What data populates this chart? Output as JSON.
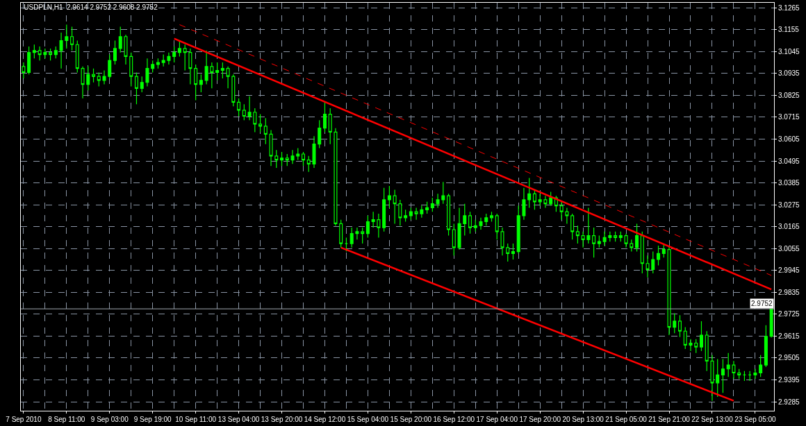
{
  "chart_data": {
    "type": "candlestick",
    "title": "USDPLN,H1  2.9614 2.9752 2.9608 2.9752",
    "categories": [
      "7 Sep 2010",
      null,
      null,
      null,
      null,
      null,
      null,
      null,
      "8 Sep 11:00",
      null,
      null,
      null,
      null,
      null,
      null,
      null,
      "9 Sep 03:00",
      null,
      null,
      null,
      null,
      null,
      null,
      null,
      "9 Sep 19:00",
      null,
      null,
      null,
      null,
      null,
      null,
      null,
      "10 Sep 11:00",
      null,
      null,
      null,
      null,
      null,
      null,
      null,
      "13 Sep 04:00",
      null,
      null,
      null,
      null,
      null,
      null,
      null,
      "13 Sep 20:00",
      null,
      null,
      null,
      null,
      null,
      null,
      null,
      "14 Sep 12:00",
      null,
      null,
      null,
      null,
      null,
      null,
      null,
      "15 Sep 04:00",
      null,
      null,
      null,
      null,
      null,
      null,
      null,
      "15 Sep 20:00",
      null,
      null,
      null,
      null,
      null,
      null,
      null,
      "16 Sep 12:00",
      null,
      null,
      null,
      null,
      null,
      null,
      null,
      "17 Sep 04:00",
      null,
      null,
      null,
      null,
      null,
      null,
      null,
      "17 Sep 20:00",
      null,
      null,
      null,
      null,
      null,
      null,
      null,
      "20 Sep 13:00",
      null,
      null,
      null,
      null,
      null,
      null,
      null,
      "21 Sep 05:00",
      null,
      null,
      null,
      null,
      null,
      null,
      null,
      "21 Sep 21:00",
      null,
      null,
      null,
      null,
      null,
      null,
      null,
      "22 Sep 13:00",
      null,
      null,
      null,
      null,
      null,
      null,
      null,
      "23 Sep 05:00",
      null,
      null,
      null
    ],
    "series": [
      {
        "color": "#00ff00",
        "ohlc": [
          [
            3.097,
            3.099,
            3.091,
            3.094
          ],
          [
            3.094,
            3.107,
            3.093,
            3.104
          ],
          [
            3.104,
            3.108,
            3.101,
            3.105
          ],
          [
            3.105,
            3.107,
            3.1,
            3.103
          ],
          [
            3.103,
            3.106,
            3.101,
            3.104
          ],
          [
            3.104,
            3.106,
            3.1,
            3.103
          ],
          [
            3.103,
            3.107,
            3.101,
            3.105
          ],
          [
            3.105,
            3.114,
            3.096,
            3.11
          ],
          [
            3.11,
            3.118,
            3.106,
            3.112
          ],
          [
            3.112,
            3.117,
            3.105,
            3.108
          ],
          [
            3.108,
            3.11,
            3.094,
            3.096
          ],
          [
            3.096,
            3.097,
            3.081,
            3.088
          ],
          [
            3.088,
            3.097,
            3.085,
            3.093
          ],
          [
            3.093,
            3.096,
            3.089,
            3.092
          ],
          [
            3.092,
            3.094,
            3.087,
            3.09
          ],
          [
            3.09,
            3.095,
            3.088,
            3.092
          ],
          [
            3.092,
            3.103,
            3.091,
            3.1
          ],
          [
            3.1,
            3.11,
            3.098,
            3.106
          ],
          [
            3.106,
            3.117,
            3.104,
            3.112
          ],
          [
            3.112,
            3.113,
            3.098,
            3.102
          ],
          [
            3.102,
            3.104,
            3.087,
            3.092
          ],
          [
            3.092,
            3.094,
            3.078,
            3.086
          ],
          [
            3.086,
            3.092,
            3.084,
            3.089
          ],
          [
            3.089,
            3.101,
            3.087,
            3.096
          ],
          [
            3.096,
            3.1,
            3.094,
            3.098
          ],
          [
            3.098,
            3.101,
            3.096,
            3.099
          ],
          [
            3.099,
            3.103,
            3.097,
            3.1
          ],
          [
            3.1,
            3.104,
            3.098,
            3.102
          ],
          [
            3.102,
            3.107,
            3.099,
            3.104
          ],
          [
            3.104,
            3.11,
            3.102,
            3.106
          ],
          [
            3.106,
            3.108,
            3.095,
            3.104
          ],
          [
            3.104,
            3.106,
            3.088,
            3.096
          ],
          [
            3.096,
            3.098,
            3.08,
            3.088
          ],
          [
            3.088,
            3.093,
            3.084,
            3.09
          ],
          [
            3.09,
            3.105,
            3.088,
            3.097
          ],
          [
            3.097,
            3.099,
            3.086,
            3.094
          ],
          [
            3.094,
            3.099,
            3.09,
            3.095
          ],
          [
            3.095,
            3.099,
            3.091,
            3.096
          ],
          [
            3.096,
            3.097,
            3.086,
            3.092
          ],
          [
            3.092,
            3.093,
            3.077,
            3.079
          ],
          [
            3.079,
            3.081,
            3.072,
            3.075
          ],
          [
            3.075,
            3.078,
            3.07,
            3.072
          ],
          [
            3.072,
            3.082,
            3.07,
            3.074
          ],
          [
            3.074,
            3.076,
            3.064,
            3.068
          ],
          [
            3.068,
            3.073,
            3.064,
            3.067
          ],
          [
            3.067,
            3.071,
            3.058,
            3.063
          ],
          [
            3.063,
            3.065,
            3.047,
            3.052
          ],
          [
            3.052,
            3.055,
            3.046,
            3.05
          ],
          [
            3.05,
            3.054,
            3.047,
            3.051
          ],
          [
            3.051,
            3.053,
            3.047,
            3.05
          ],
          [
            3.05,
            3.055,
            3.048,
            3.052
          ],
          [
            3.052,
            3.056,
            3.05,
            3.053
          ],
          [
            3.053,
            3.054,
            3.047,
            3.05
          ],
          [
            3.05,
            3.052,
            3.044,
            3.048
          ],
          [
            3.048,
            3.062,
            3.046,
            3.058
          ],
          [
            3.058,
            3.07,
            3.056,
            3.066
          ],
          [
            3.066,
            3.079,
            3.064,
            3.073
          ],
          [
            3.073,
            3.076,
            3.058,
            3.064
          ],
          [
            3.064,
            3.066,
            3.017,
            3.018
          ],
          [
            3.018,
            3.02,
            3.006,
            3.008
          ],
          [
            3.008,
            3.011,
            3.004,
            3.008
          ],
          [
            3.008,
            3.016,
            3.006,
            3.013
          ],
          [
            3.013,
            3.016,
            3.01,
            3.014
          ],
          [
            3.014,
            3.016,
            3.008,
            3.013
          ],
          [
            3.013,
            3.022,
            3.011,
            3.019
          ],
          [
            3.019,
            3.024,
            3.016,
            3.02
          ],
          [
            3.02,
            3.023,
            3.011,
            3.016
          ],
          [
            3.016,
            3.036,
            3.014,
            3.03
          ],
          [
            3.03,
            3.037,
            3.026,
            3.032
          ],
          [
            3.032,
            3.035,
            3.018,
            3.028
          ],
          [
            3.028,
            3.03,
            3.017,
            3.021
          ],
          [
            3.021,
            3.025,
            3.019,
            3.022
          ],
          [
            3.022,
            3.026,
            3.02,
            3.024
          ],
          [
            3.024,
            3.026,
            3.02,
            3.023
          ],
          [
            3.023,
            3.027,
            3.021,
            3.025
          ],
          [
            3.025,
            3.029,
            3.023,
            3.026
          ],
          [
            3.026,
            3.031,
            3.024,
            3.028
          ],
          [
            3.028,
            3.033,
            3.026,
            3.03
          ],
          [
            3.03,
            3.039,
            3.028,
            3.032
          ],
          [
            3.032,
            3.033,
            3.012,
            3.015
          ],
          [
            3.015,
            3.018,
            3.002,
            3.006
          ],
          [
            3.006,
            3.026,
            3.005,
            3.018
          ],
          [
            3.018,
            3.028,
            3.012,
            3.022
          ],
          [
            3.022,
            3.024,
            3.013,
            3.016
          ],
          [
            3.016,
            3.02,
            3.014,
            3.017
          ],
          [
            3.017,
            3.021,
            3.015,
            3.019
          ],
          [
            3.019,
            3.023,
            3.017,
            3.021
          ],
          [
            3.021,
            3.024,
            3.019,
            3.022
          ],
          [
            3.022,
            3.023,
            3.01,
            3.014
          ],
          [
            3.014,
            3.016,
            3.002,
            3.006
          ],
          [
            3.006,
            3.008,
            2.999,
            3.003
          ],
          [
            3.003,
            3.008,
            3.0,
            3.004
          ],
          [
            3.004,
            3.027,
            3.003,
            3.022
          ],
          [
            3.022,
            3.036,
            3.02,
            3.03
          ],
          [
            3.03,
            3.041,
            3.026,
            3.033
          ],
          [
            3.033,
            3.035,
            3.025,
            3.029
          ],
          [
            3.029,
            3.033,
            3.027,
            3.03
          ],
          [
            3.03,
            3.032,
            3.026,
            3.028
          ],
          [
            3.028,
            3.034,
            3.027,
            3.031
          ],
          [
            3.031,
            3.032,
            3.024,
            3.027
          ],
          [
            3.027,
            3.029,
            3.02,
            3.024
          ],
          [
            3.024,
            3.026,
            3.018,
            3.022
          ],
          [
            3.022,
            3.023,
            3.01,
            3.014
          ],
          [
            3.014,
            3.017,
            3.008,
            3.012
          ],
          [
            3.012,
            3.014,
            3.006,
            3.01
          ],
          [
            3.01,
            3.026,
            3.008,
            3.012
          ],
          [
            3.012,
            3.016,
            3.001,
            3.008
          ],
          [
            3.008,
            3.012,
            3.006,
            3.009
          ],
          [
            3.009,
            3.014,
            3.007,
            3.011
          ],
          [
            3.011,
            3.014,
            3.009,
            3.012
          ],
          [
            3.012,
            3.014,
            3.009,
            3.011
          ],
          [
            3.011,
            3.014,
            3.009,
            3.012
          ],
          [
            3.012,
            3.013,
            3.006,
            3.008
          ],
          [
            3.008,
            3.01,
            3.004,
            3.006
          ],
          [
            3.006,
            3.018,
            3.004,
            3.012
          ],
          [
            3.012,
            3.014,
            2.993,
            2.998
          ],
          [
            2.998,
            3.002,
            2.991,
            2.995
          ],
          [
            2.995,
            3.004,
            2.993,
            3.0
          ],
          [
            3.0,
            3.007,
            2.997,
            3.003
          ],
          [
            3.003,
            3.008,
            3.001,
            3.005
          ],
          [
            3.005,
            3.007,
            2.962,
            2.966
          ],
          [
            2.966,
            2.973,
            2.963,
            2.969
          ],
          [
            2.969,
            2.972,
            2.961,
            2.964
          ],
          [
            2.964,
            2.966,
            2.955,
            2.957
          ],
          [
            2.957,
            2.96,
            2.954,
            2.958
          ],
          [
            2.958,
            2.96,
            2.953,
            2.956
          ],
          [
            2.956,
            2.969,
            2.954,
            2.962
          ],
          [
            2.962,
            2.964,
            2.944,
            2.949
          ],
          [
            2.949,
            2.952,
            2.929,
            2.938
          ],
          [
            2.938,
            2.95,
            2.931,
            2.942
          ],
          [
            2.942,
            2.95,
            2.933,
            2.945
          ],
          [
            2.945,
            2.953,
            2.941,
            2.947
          ],
          [
            2.947,
            2.949,
            2.94,
            2.943
          ],
          [
            2.943,
            2.945,
            2.94,
            2.942
          ],
          [
            2.942,
            2.944,
            2.939,
            2.942
          ],
          [
            2.942,
            2.944,
            2.939,
            2.942
          ],
          [
            2.942,
            2.945,
            2.94,
            2.943
          ],
          [
            2.943,
            2.952,
            2.941,
            2.947
          ],
          [
            2.947,
            2.967,
            2.946,
            2.9614
          ],
          [
            2.9614,
            2.9752,
            2.9608,
            2.9752
          ]
        ]
      },
      {
        "type": "line",
        "color": "#ff0000",
        "line_style": "solid",
        "values": [
          null,
          null,
          null,
          null,
          null,
          null,
          null,
          null,
          null,
          null,
          null,
          null,
          null,
          null,
          null,
          null,
          null,
          null,
          null,
          null,
          null,
          null,
          null,
          null,
          null,
          null,
          null,
          null,
          3.111,
          null,
          null,
          null,
          null,
          null,
          null,
          null,
          null,
          null,
          null,
          null,
          null,
          null,
          null,
          null,
          null,
          null,
          null,
          null,
          null,
          null,
          null,
          null,
          null,
          null,
          null,
          null,
          null,
          null,
          null,
          null,
          null,
          null,
          null,
          null,
          null,
          null,
          null,
          null,
          null,
          null,
          null,
          null,
          null,
          null,
          null,
          null,
          null,
          null,
          null,
          null,
          null,
          null,
          null,
          null,
          null,
          null,
          null,
          null,
          null,
          null,
          null,
          null,
          null,
          null,
          null,
          null,
          null,
          null,
          null,
          null,
          null,
          null,
          null,
          null,
          null,
          null,
          null,
          null,
          null,
          null,
          null,
          null,
          null,
          null,
          null,
          null,
          null,
          null,
          null,
          null,
          null,
          null,
          null,
          null,
          null,
          null,
          null,
          null,
          null,
          null,
          null,
          null,
          null,
          null,
          null,
          null,
          null,
          null,
          null,
          2.985
        ]
      },
      {
        "type": "line",
        "color": "#ff0000",
        "line_style": "dashed",
        "values": [
          null,
          null,
          null,
          null,
          null,
          null,
          null,
          null,
          null,
          null,
          null,
          null,
          null,
          null,
          null,
          null,
          null,
          null,
          null,
          null,
          null,
          null,
          null,
          null,
          null,
          null,
          null,
          null,
          null,
          3.118,
          null,
          null,
          null,
          null,
          null,
          null,
          null,
          null,
          null,
          null,
          null,
          null,
          null,
          null,
          null,
          null,
          null,
          null,
          null,
          null,
          null,
          null,
          null,
          null,
          null,
          null,
          null,
          null,
          null,
          null,
          null,
          null,
          null,
          null,
          null,
          null,
          null,
          null,
          null,
          null,
          null,
          null,
          null,
          null,
          null,
          null,
          null,
          null,
          null,
          null,
          null,
          null,
          null,
          null,
          null,
          null,
          null,
          null,
          null,
          null,
          null,
          null,
          null,
          null,
          null,
          null,
          null,
          null,
          null,
          null,
          null,
          null,
          null,
          null,
          null,
          null,
          null,
          null,
          null,
          null,
          null,
          null,
          null,
          null,
          null,
          null,
          null,
          null,
          null,
          null,
          null,
          null,
          null,
          null,
          null,
          null,
          null,
          null,
          null,
          null,
          null,
          null,
          null,
          null,
          null,
          null,
          null,
          null,
          null,
          2.992
        ]
      },
      {
        "type": "line",
        "color": "#ff0000",
        "line_style": "solid",
        "values": [
          null,
          null,
          null,
          null,
          null,
          null,
          null,
          null,
          null,
          null,
          null,
          null,
          null,
          null,
          null,
          null,
          null,
          null,
          null,
          null,
          null,
          null,
          null,
          null,
          null,
          null,
          null,
          null,
          null,
          null,
          null,
          null,
          null,
          null,
          null,
          null,
          null,
          null,
          null,
          null,
          null,
          null,
          null,
          null,
          null,
          null,
          null,
          null,
          null,
          null,
          null,
          null,
          null,
          null,
          null,
          null,
          null,
          null,
          null,
          3.006,
          null,
          null,
          null,
          null,
          null,
          null,
          null,
          null,
          null,
          null,
          null,
          null,
          null,
          null,
          null,
          null,
          null,
          null,
          null,
          null,
          null,
          null,
          null,
          null,
          null,
          null,
          null,
          null,
          null,
          null,
          null,
          null,
          null,
          null,
          null,
          null,
          null,
          null,
          null,
          null,
          null,
          null,
          null,
          null,
          null,
          null,
          null,
          null,
          null,
          null,
          null,
          null,
          null,
          null,
          null,
          null,
          null,
          null,
          null,
          null,
          null,
          null,
          null,
          null,
          null,
          null,
          null,
          null,
          null,
          null,
          null,
          null,
          2.929,
          null,
          null,
          null,
          null,
          null,
          null,
          null
        ]
      }
    ],
    "ylim": [
      2.924,
      3.129
    ],
    "yticks": [
      3.1265,
      3.1155,
      3.1045,
      3.0935,
      3.0825,
      3.0715,
      3.0605,
      3.0495,
      3.0385,
      3.0275,
      3.0165,
      3.0055,
      2.9945,
      2.9835,
      2.9725,
      2.9615,
      2.9505,
      2.9395,
      2.9285
    ],
    "ref_lines": [
      {
        "axis": "y",
        "value": 2.9752,
        "label": "2.9752",
        "color": "#a0a8b0"
      }
    ],
    "grid": true
  }
}
